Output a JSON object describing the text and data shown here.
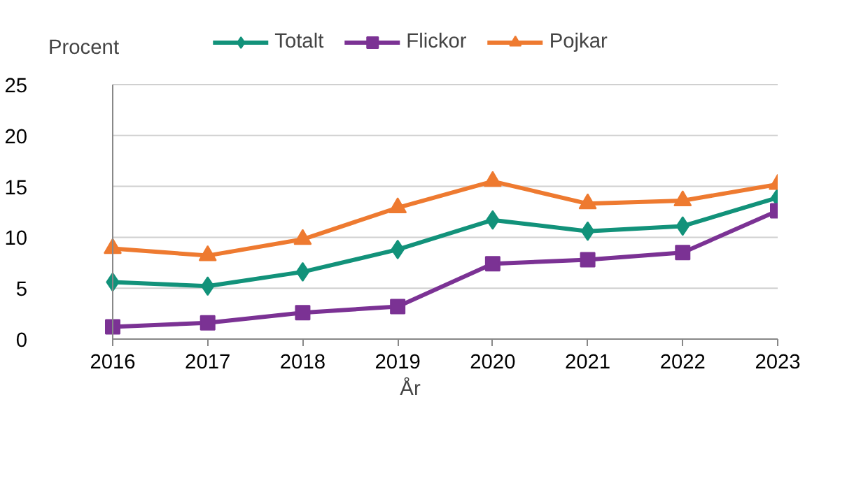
{
  "chart_data": {
    "type": "line",
    "xlabel": "År",
    "ylabel": "Procent",
    "x": [
      2016,
      2017,
      2018,
      2019,
      2020,
      2021,
      2022,
      2023
    ],
    "xlim": [
      2016,
      2023
    ],
    "xticks": [
      2016,
      2017,
      2018,
      2019,
      2020,
      2021,
      2022,
      2023
    ],
    "ylim": [
      0,
      25
    ],
    "yticks": [
      0,
      5,
      10,
      15,
      20,
      25
    ],
    "grid": "y",
    "legend": "top",
    "line_style": "solid",
    "series": [
      {
        "name": "Totalt",
        "color": "#12927a",
        "marker": "diamond",
        "values": [
          5.6,
          5.2,
          6.6,
          8.8,
          11.7,
          10.6,
          11.1,
          13.9
        ]
      },
      {
        "name": "Flickor",
        "color": "#7b3294",
        "marker": "square",
        "values": [
          1.2,
          1.6,
          2.6,
          3.2,
          7.4,
          7.8,
          8.5,
          12.6
        ]
      },
      {
        "name": "Pojkar",
        "color": "#ee7a30",
        "marker": "triangle",
        "values": [
          8.9,
          8.2,
          9.8,
          12.9,
          15.5,
          13.3,
          13.6,
          15.2
        ]
      }
    ]
  }
}
